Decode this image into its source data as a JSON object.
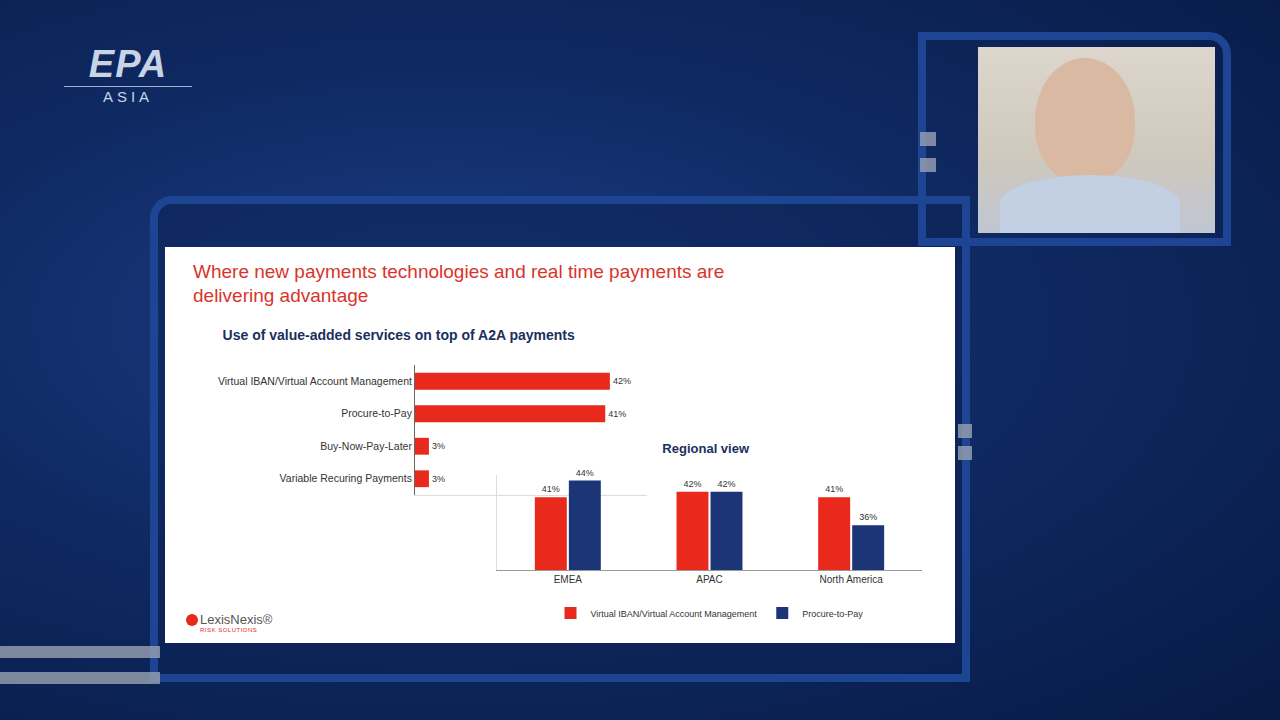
{
  "page": {
    "logo": {
      "text": "EPA",
      "subtext": "ASIA"
    },
    "slide_title_lines": [
      "Where new payments technologies and real time payments are",
      "delivering advantage"
    ],
    "footer_logo": {
      "name": "LexisNexis®",
      "tagline": "RISK SOLUTIONS"
    }
  },
  "chart_data": [
    {
      "type": "bar",
      "title": "Use of value-added services on top of A2A payments",
      "orientation": "horizontal",
      "categories": [
        "Virtual IBAN/Virtual Account Management",
        "Procure-to-Pay",
        "Buy-Now-Pay-Later",
        "Variable Recuring Payments"
      ],
      "values": [
        42,
        41,
        3,
        3
      ],
      "value_labels": [
        "42%",
        "41%",
        "3%",
        "3%"
      ],
      "color": "#e8291c",
      "xlim": [
        0,
        50
      ],
      "data_labels": true,
      "tick_labels": "y",
      "grid": false
    },
    {
      "type": "bar",
      "title": "Regional view",
      "categories": [
        "EMEA",
        "APAC",
        "North America"
      ],
      "series": [
        {
          "name": "Virtual IBAN/Virtual Account Management",
          "color": "#e8291c",
          "values": [
            41,
            42,
            41
          ],
          "value_labels": [
            "41%",
            "42%",
            "41%"
          ]
        },
        {
          "name": "Procure-to-Pay",
          "color": "#1b3577",
          "values": [
            44,
            42,
            36
          ],
          "value_labels": [
            "44%",
            "42%",
            "36%"
          ]
        }
      ],
      "ylim": [
        28,
        45
      ],
      "data_labels": true,
      "tick_labels": "x",
      "legend": "bottom",
      "grid": false
    }
  ]
}
